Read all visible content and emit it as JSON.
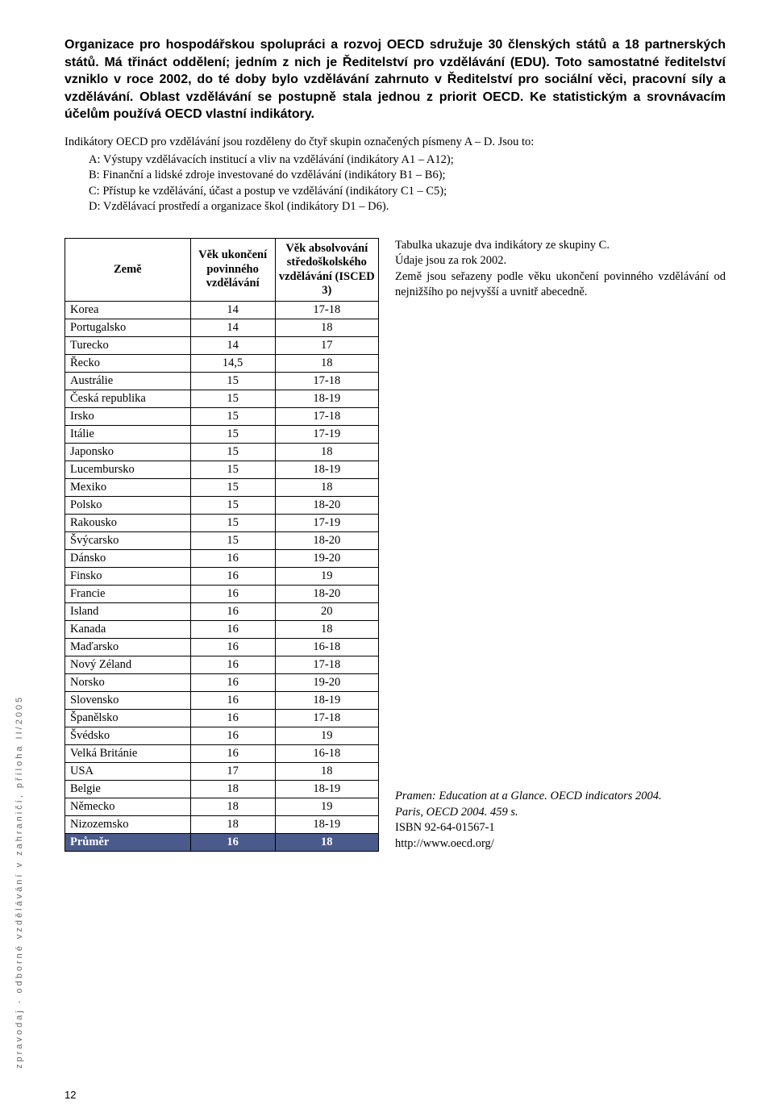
{
  "intro": "Organizace pro hospodářskou spolupráci a rozvoj OECD sdružuje 30 členských států a 18 partnerských států. Má třináct oddělení; jedním z nich je Ředitelství pro vzdělávání (EDU). Toto samostatné ředitelství vzniklo v roce 2002, do té doby bylo vzdělávání zahrnuto v Ředitelství pro sociální věci, pracovní síly a vzdělávání. Oblast vzdělávání se postupně stala jednou z priorit OECD. Ke statistickým a srovnávacím účelům používá OECD vlastní indikátory.",
  "indic_para": "Indikátory OECD pro vzdělávání jsou rozděleny do čtyř skupin označených písmeny A – D. Jsou to:",
  "indic_list": [
    "A: Výstupy vzdělávacích institucí a vliv na vzdělávání (indikátory A1 – A12);",
    "B: Finanční a lidské zdroje investované do vzdělávání (indikátory B1 – B6);",
    "C: Přístup ke vzdělávání, účast a postup ve vzdělávání (indikátory C1 – C5);",
    "D: Vzdělávací prostředí a organizace škol (indikátory D1 – D6)."
  ],
  "table": {
    "headers": {
      "country": "Země",
      "age_end": "Věk ukončení povinného vzdělávání",
      "age_grad": "Věk absolvování středoškolského vzdělávání (ISCED 3)"
    },
    "rows": [
      {
        "country": "Korea",
        "age_end": "14",
        "age_grad": "17-18"
      },
      {
        "country": "Portugalsko",
        "age_end": "14",
        "age_grad": "18"
      },
      {
        "country": "Turecko",
        "age_end": "14",
        "age_grad": "17"
      },
      {
        "country": "Řecko",
        "age_end": "14,5",
        "age_grad": "18"
      },
      {
        "country": "Austrálie",
        "age_end": "15",
        "age_grad": "17-18"
      },
      {
        "country": "Česká republika",
        "age_end": "15",
        "age_grad": "18-19"
      },
      {
        "country": "Irsko",
        "age_end": "15",
        "age_grad": "17-18"
      },
      {
        "country": "Itálie",
        "age_end": "15",
        "age_grad": "17-19"
      },
      {
        "country": "Japonsko",
        "age_end": "15",
        "age_grad": "18"
      },
      {
        "country": "Lucembursko",
        "age_end": "15",
        "age_grad": "18-19"
      },
      {
        "country": "Mexiko",
        "age_end": "15",
        "age_grad": "18"
      },
      {
        "country": "Polsko",
        "age_end": "15",
        "age_grad": "18-20"
      },
      {
        "country": "Rakousko",
        "age_end": "15",
        "age_grad": "17-19"
      },
      {
        "country": "Švýcarsko",
        "age_end": "15",
        "age_grad": "18-20"
      },
      {
        "country": "Dánsko",
        "age_end": "16",
        "age_grad": "19-20"
      },
      {
        "country": "Finsko",
        "age_end": "16",
        "age_grad": "19"
      },
      {
        "country": "Francie",
        "age_end": "16",
        "age_grad": "18-20"
      },
      {
        "country": "Island",
        "age_end": "16",
        "age_grad": "20"
      },
      {
        "country": "Kanada",
        "age_end": "16",
        "age_grad": "18"
      },
      {
        "country": "Maďarsko",
        "age_end": "16",
        "age_grad": "16-18"
      },
      {
        "country": "Nový Zéland",
        "age_end": "16",
        "age_grad": "17-18"
      },
      {
        "country": "Norsko",
        "age_end": "16",
        "age_grad": "19-20"
      },
      {
        "country": "Slovensko",
        "age_end": "16",
        "age_grad": "18-19"
      },
      {
        "country": "Španělsko",
        "age_end": "16",
        "age_grad": "17-18"
      },
      {
        "country": "Švédsko",
        "age_end": "16",
        "age_grad": "19"
      },
      {
        "country": "Velká Británie",
        "age_end": "16",
        "age_grad": "16-18"
      },
      {
        "country": "USA",
        "age_end": "17",
        "age_grad": "18"
      },
      {
        "country": "Belgie",
        "age_end": "18",
        "age_grad": "18-19"
      },
      {
        "country": "Německo",
        "age_end": "18",
        "age_grad": "19"
      },
      {
        "country": "Nizozemsko",
        "age_end": "18",
        "age_grad": "18-19"
      }
    ],
    "average": {
      "country": "Průměr",
      "age_end": "16",
      "age_grad": "18"
    },
    "avg_bg_color": "#4a5a8a"
  },
  "side_top": [
    "Tabulka ukazuje dva indikátory ze skupiny C.",
    "Údaje jsou za rok 2002.",
    "Země jsou seřazeny podle věku ukončení povinného vzdělávání od nejnižšího po nejvyšší a uvnitř abecedně."
  ],
  "side_bottom": [
    "Pramen: Education at a Glance. OECD indicators 2004.",
    "Paris, OECD 2004. 459 s.",
    "ISBN 92-64-01567-1",
    "http://www.oecd.org/"
  ],
  "vertical_label": "zpravodaj - odborné vzdělávání v zahraničí, příloha II/2005",
  "page_number": "12"
}
